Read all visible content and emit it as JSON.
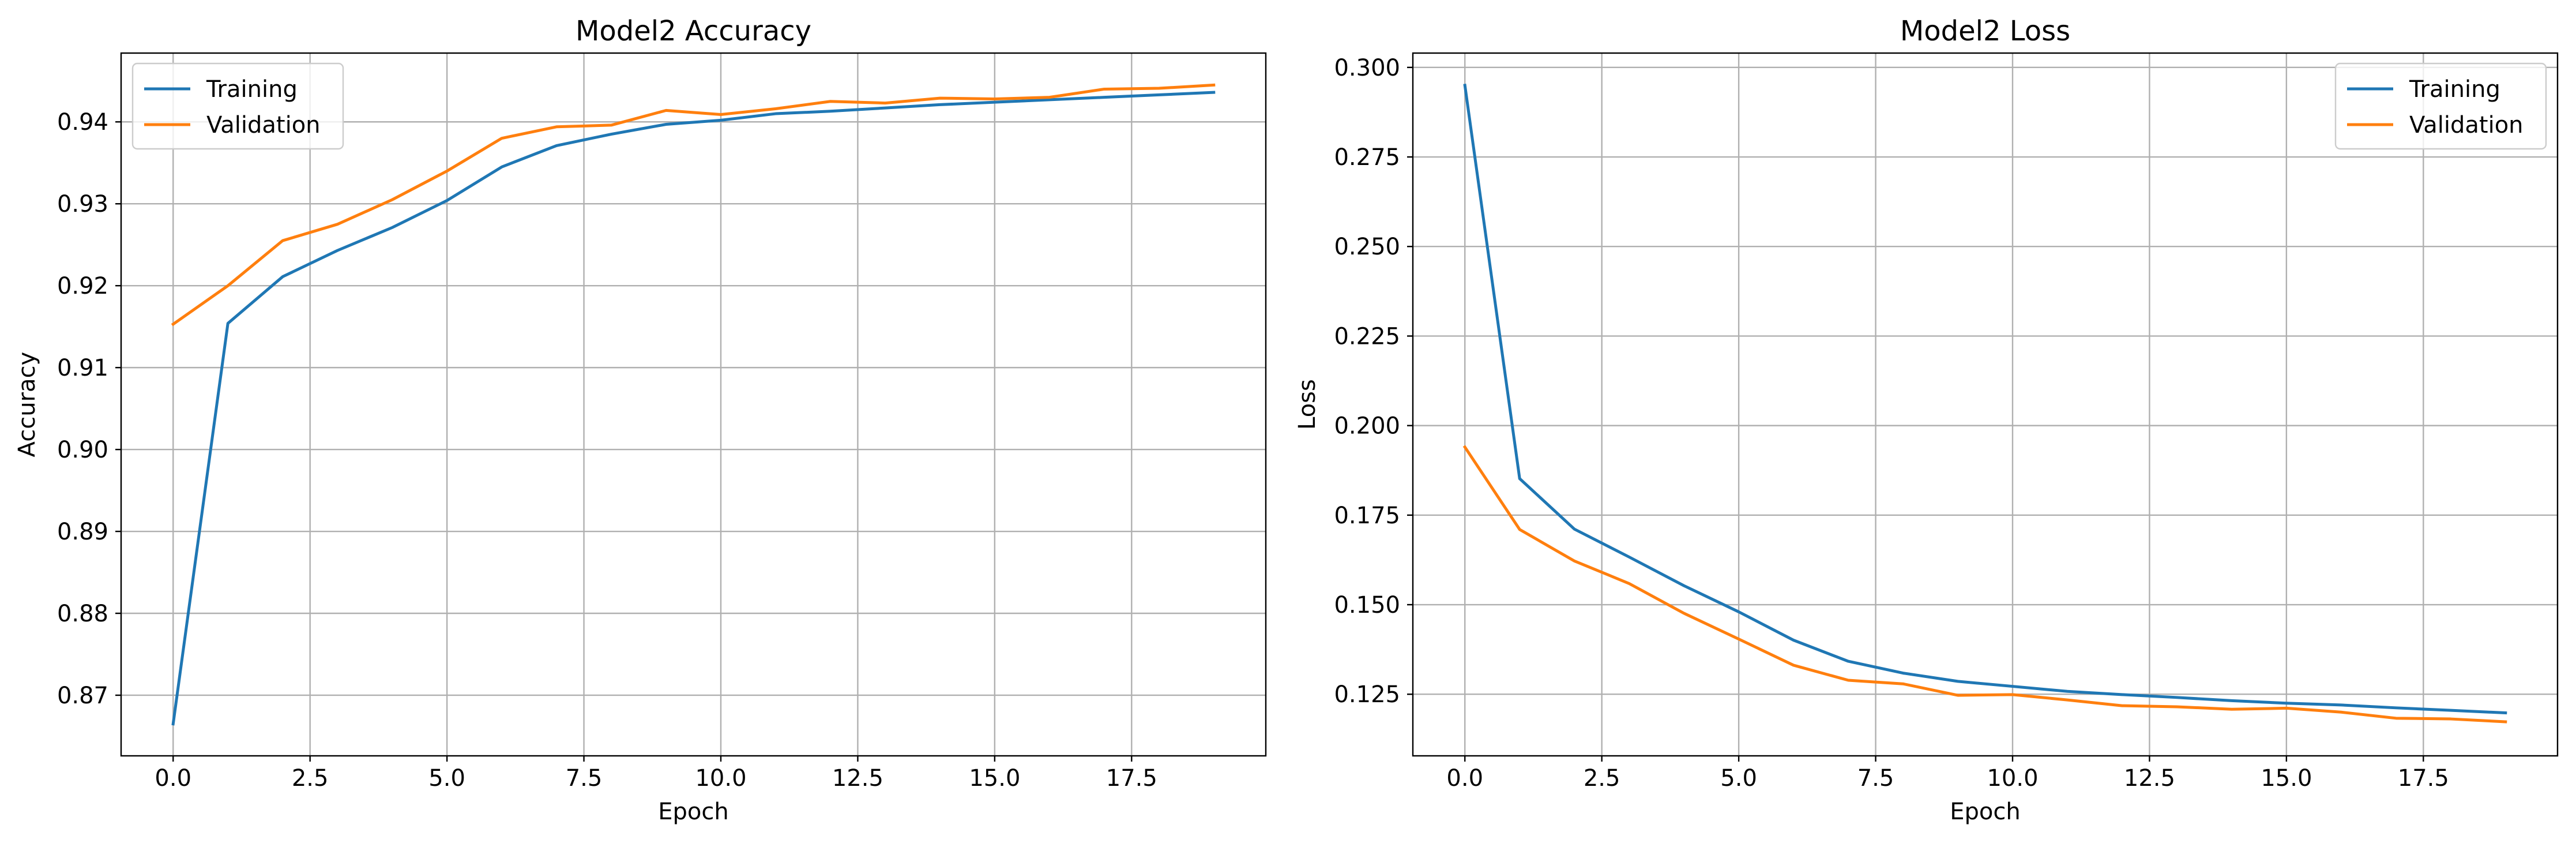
{
  "chart_data": [
    {
      "type": "line",
      "title": "Model2 Accuracy",
      "xlabel": "Epoch",
      "ylabel": "Accuracy",
      "xlim": [
        -0.95,
        19.95
      ],
      "ylim": [
        0.8626,
        0.9484
      ],
      "xticks": [
        0.0,
        2.5,
        5.0,
        7.5,
        10.0,
        12.5,
        15.0,
        17.5
      ],
      "xtick_labels": [
        "0.0",
        "2.5",
        "5.0",
        "7.5",
        "10.0",
        "12.5",
        "15.0",
        "17.5"
      ],
      "yticks": [
        0.87,
        0.88,
        0.89,
        0.9,
        0.91,
        0.92,
        0.93,
        0.94
      ],
      "ytick_labels": [
        "0.87",
        "0.88",
        "0.89",
        "0.90",
        "0.91",
        "0.92",
        "0.93",
        "0.94"
      ],
      "grid": true,
      "legend_position": "top-left",
      "x": [
        0,
        1,
        2,
        3,
        4,
        5,
        6,
        7,
        8,
        9,
        10,
        11,
        12,
        13,
        14,
        15,
        16,
        17,
        18,
        19
      ],
      "series": [
        {
          "name": "Training",
          "color": "#1f77b4",
          "values": [
            0.8665,
            0.9154,
            0.9211,
            0.9243,
            0.9271,
            0.9304,
            0.9345,
            0.9371,
            0.9385,
            0.9397,
            0.9402,
            0.941,
            0.9413,
            0.9417,
            0.9421,
            0.9424,
            0.9427,
            0.943,
            0.9433,
            0.9436
          ]
        },
        {
          "name": "Validation",
          "color": "#ff7f0e",
          "values": [
            0.9153,
            0.92,
            0.9255,
            0.9275,
            0.9305,
            0.934,
            0.938,
            0.9394,
            0.9396,
            0.9414,
            0.9409,
            0.9416,
            0.9425,
            0.9423,
            0.9429,
            0.9428,
            0.943,
            0.944,
            0.9441,
            0.9445
          ]
        }
      ]
    },
    {
      "type": "line",
      "title": "Model2 Loss",
      "xlabel": "Epoch",
      "ylabel": "Loss",
      "xlim": [
        -0.95,
        19.95
      ],
      "ylim": [
        0.1078,
        0.304
      ],
      "xticks": [
        0.0,
        2.5,
        5.0,
        7.5,
        10.0,
        12.5,
        15.0,
        17.5
      ],
      "xtick_labels": [
        "0.0",
        "2.5",
        "5.0",
        "7.5",
        "10.0",
        "12.5",
        "15.0",
        "17.5"
      ],
      "yticks": [
        0.125,
        0.15,
        0.175,
        0.2,
        0.225,
        0.25,
        0.275,
        0.3
      ],
      "ytick_labels": [
        "0.125",
        "0.150",
        "0.175",
        "0.200",
        "0.225",
        "0.250",
        "0.275",
        "0.300"
      ],
      "grid": true,
      "legend_position": "top-right",
      "x": [
        0,
        1,
        2,
        3,
        4,
        5,
        6,
        7,
        8,
        9,
        10,
        11,
        12,
        13,
        14,
        15,
        16,
        17,
        18,
        19
      ],
      "series": [
        {
          "name": "Training",
          "color": "#1f77b4",
          "values": [
            0.295,
            0.1852,
            0.1711,
            0.1633,
            0.1553,
            0.148,
            0.1401,
            0.1342,
            0.1309,
            0.1286,
            0.1272,
            0.1258,
            0.1249,
            0.1241,
            0.1232,
            0.1225,
            0.122,
            0.1212,
            0.1205,
            0.1198
          ]
        },
        {
          "name": "Validation",
          "color": "#ff7f0e",
          "values": [
            0.194,
            0.171,
            0.1622,
            0.1559,
            0.1476,
            0.1404,
            0.1331,
            0.1289,
            0.1279,
            0.1247,
            0.1249,
            0.1234,
            0.1218,
            0.1215,
            0.1208,
            0.1211,
            0.12,
            0.1183,
            0.1181,
            0.1173
          ]
        }
      ]
    }
  ]
}
